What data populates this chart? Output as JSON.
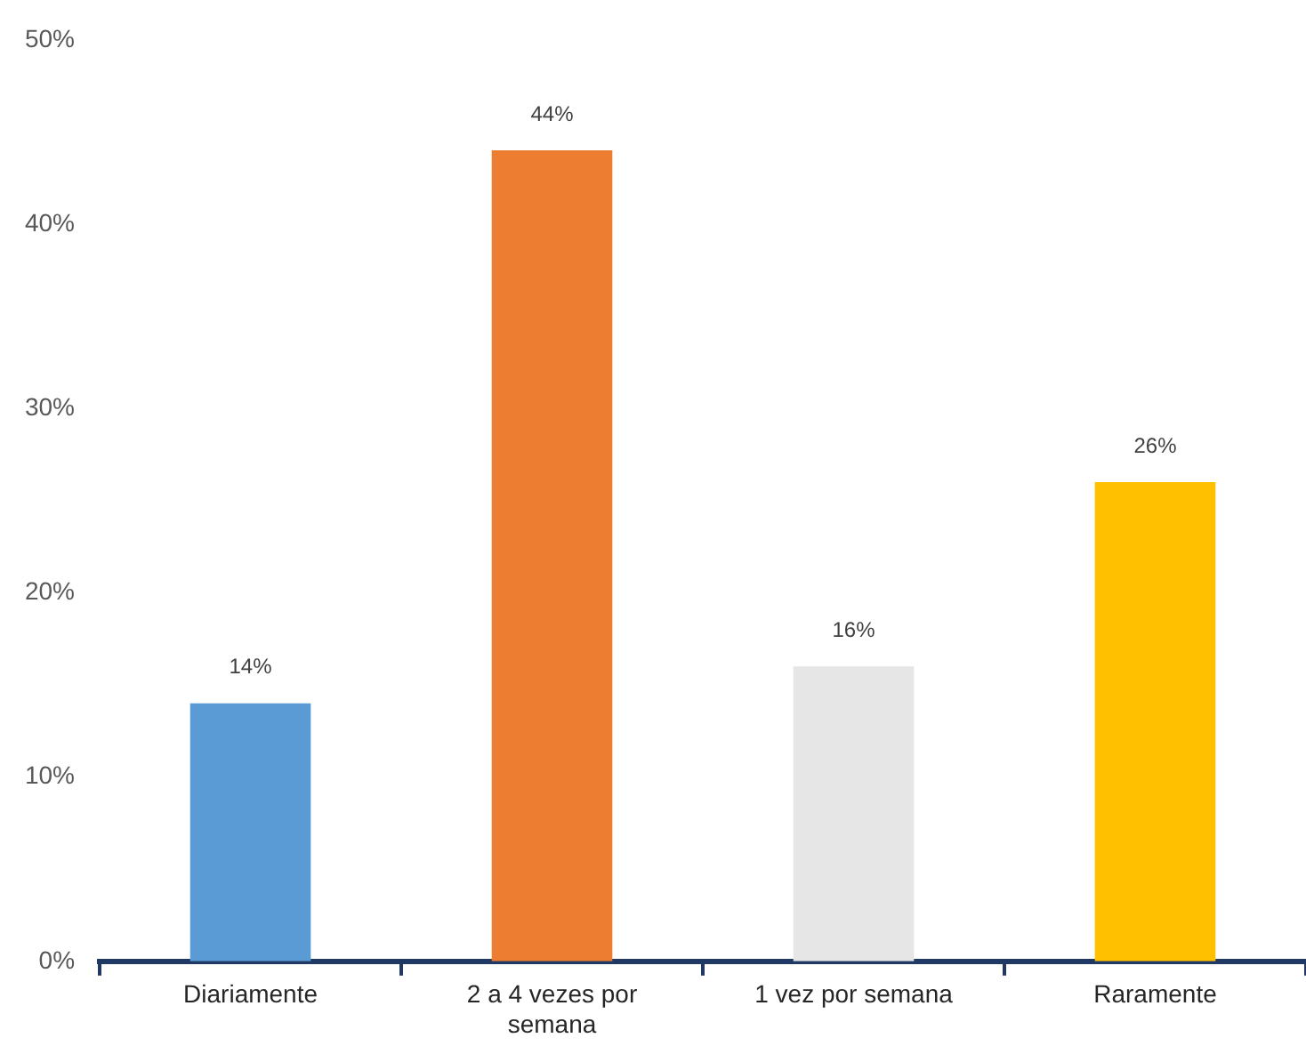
{
  "chart_data": {
    "type": "bar",
    "categories": [
      "Diariamente",
      "2 a 4 vezes por semana",
      "1 vez por semana",
      "Raramente"
    ],
    "values": [
      14,
      44,
      16,
      26
    ],
    "colors": [
      "#5b9bd5",
      "#ed7d31",
      "#e7e6e6",
      "#ffc000"
    ],
    "value_labels": [
      "14%",
      "44%",
      "16%",
      "26%"
    ],
    "ylim": [
      0,
      50
    ],
    "yticks": [
      {
        "value": 0,
        "label": "0%"
      },
      {
        "value": 10,
        "label": "10%"
      },
      {
        "value": 20,
        "label": "20%"
      },
      {
        "value": 30,
        "label": "30%"
      },
      {
        "value": 40,
        "label": "40%"
      },
      {
        "value": 50,
        "label": "50%"
      }
    ],
    "grid": false,
    "legend": false
  }
}
